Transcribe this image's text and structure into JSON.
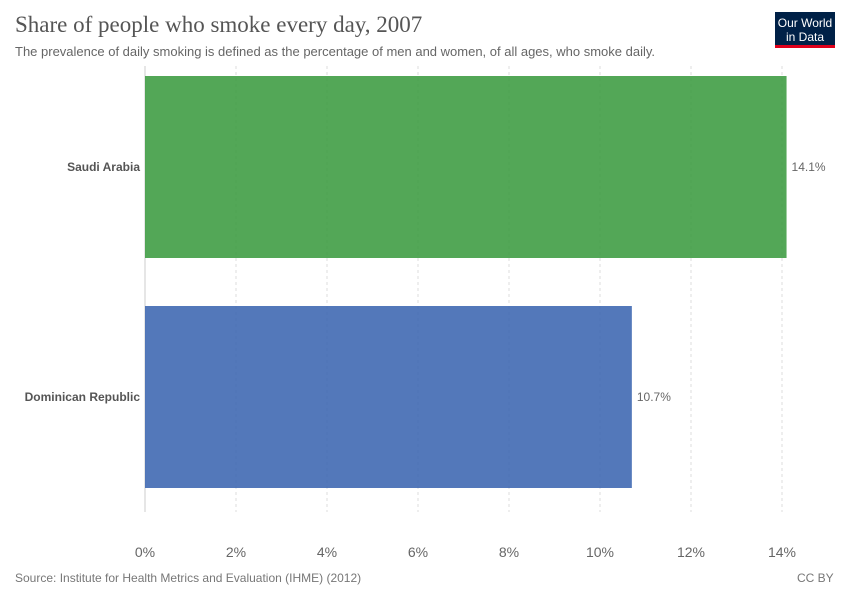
{
  "header": {
    "title": "Share of people who smoke every day, 2007",
    "subtitle": "The prevalence of daily smoking is defined as the percentage of men and women, of all ages, who smoke daily."
  },
  "logo": {
    "line1": "Our World",
    "line2": "in Data"
  },
  "footer": {
    "source": "Source: Institute for Health Metrics and Evaluation (IHME) (2012)",
    "license": "CC BY"
  },
  "chart_data": {
    "type": "bar",
    "orientation": "horizontal",
    "categories": [
      "Saudi Arabia",
      "Dominican Republic"
    ],
    "values": [
      14.1,
      10.7
    ],
    "value_labels": [
      "14.1%",
      "10.7%"
    ],
    "colors": [
      "#3a9a3e",
      "#3a64b0"
    ],
    "xlim": [
      0,
      14
    ],
    "xticks": [
      0,
      2,
      4,
      6,
      8,
      10,
      12,
      14
    ],
    "xtick_labels": [
      "0%",
      "2%",
      "4%",
      "6%",
      "8%",
      "10%",
      "12%",
      "14%"
    ],
    "grid": true
  }
}
